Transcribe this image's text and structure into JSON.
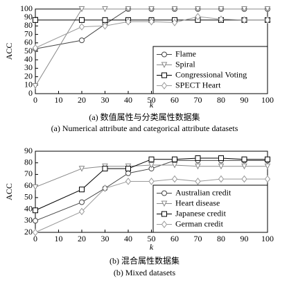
{
  "chart_data": [
    {
      "type": "line",
      "ylabel": "ACC",
      "xlabel": "k",
      "caption_cn": "(a) 数值属性与分类属性数据集",
      "caption_en": "(a) Numerical attribute and categorical attribute datasets",
      "x": [
        0,
        20,
        30,
        40,
        50,
        60,
        70,
        80,
        90,
        100
      ],
      "xlim": [
        0,
        100
      ],
      "xticks": [
        0,
        10,
        20,
        30,
        40,
        50,
        60,
        70,
        80,
        90,
        100
      ],
      "ylim": [
        0,
        100
      ],
      "yticks": [
        0,
        10,
        20,
        30,
        40,
        50,
        60,
        70,
        80,
        90,
        100
      ],
      "legend": "lower right",
      "series": [
        {
          "name": "Flame",
          "color": "#444444",
          "marker": "circle",
          "values": [
            53,
            63,
            82,
            100,
            100,
            100,
            100,
            100,
            100,
            100
          ]
        },
        {
          "name": "Spiral",
          "color": "#888888",
          "marker": "triangle-down",
          "values": [
            9,
            100,
            100,
            100,
            100,
            100,
            100,
            100,
            100,
            100
          ]
        },
        {
          "name": "Congressional Voting",
          "color": "#000000",
          "marker": "square",
          "values": [
            87,
            87,
            87,
            87,
            87,
            87,
            87,
            87,
            87,
            87
          ]
        },
        {
          "name": "SPECT Heart",
          "color": "#999999",
          "marker": "diamond",
          "values": [
            54,
            79,
            80,
            85,
            85,
            84,
            91,
            88,
            87,
            87
          ]
        }
      ]
    },
    {
      "type": "line",
      "ylabel": "ACC",
      "xlabel": "k",
      "caption_cn": "(b) 混合属性数据集",
      "caption_en": "(b) Mixed datasets",
      "x": [
        0,
        20,
        30,
        40,
        50,
        60,
        70,
        80,
        90,
        100
      ],
      "xlim": [
        0,
        100
      ],
      "xticks": [
        0,
        10,
        20,
        30,
        40,
        50,
        60,
        70,
        80,
        90,
        100
      ],
      "ylim": [
        20,
        90
      ],
      "yticks": [
        20,
        30,
        40,
        50,
        60,
        70,
        80,
        90
      ],
      "legend": "lower right",
      "series": [
        {
          "name": "Australian credit",
          "color": "#444444",
          "marker": "circle",
          "values": [
            30,
            46,
            58,
            71,
            75,
            82,
            82,
            82,
            82,
            82
          ]
        },
        {
          "name": "Heart disease",
          "color": "#888888",
          "marker": "triangle-down",
          "values": [
            59,
            75,
            77,
            77,
            78,
            78,
            77,
            77,
            77,
            77
          ]
        },
        {
          "name": "Japanese credit",
          "color": "#000000",
          "marker": "square",
          "values": [
            39,
            57,
            75,
            75,
            83,
            83,
            84,
            84,
            83,
            83
          ]
        },
        {
          "name": "German credit",
          "color": "#999999",
          "marker": "diamond",
          "values": [
            20,
            38,
            58,
            64,
            64,
            66,
            64,
            66,
            66,
            66
          ]
        }
      ]
    }
  ]
}
